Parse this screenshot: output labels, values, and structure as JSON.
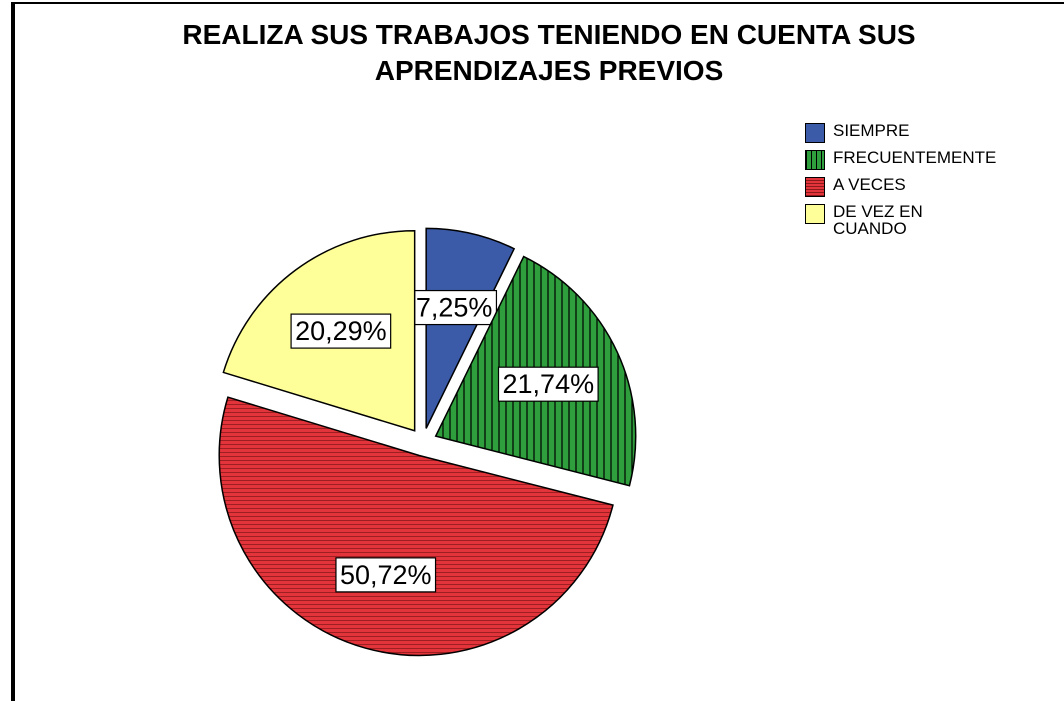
{
  "chart_data": {
    "type": "pie",
    "title": [
      "REALIZA SUS TRABAJOS TENIENDO EN CUENTA SUS",
      "APRENDIZAJES PREVIOS"
    ],
    "categories": [
      "SIEMPRE",
      "FRECUENTEMENTE",
      "A VECES",
      "DE VEZ EN CUANDO"
    ],
    "values": [
      7.25,
      21.74,
      50.72,
      20.29
    ],
    "value_labels": [
      "7,25%",
      "21,74%",
      "50,72%",
      "20,29%"
    ],
    "colors": [
      "#3b5ba9",
      "#2f9e3c",
      "#e2343a",
      "#ffff99"
    ],
    "patterns": [
      null,
      "vertical",
      "horizontal",
      null
    ],
    "legend": "top-right"
  }
}
